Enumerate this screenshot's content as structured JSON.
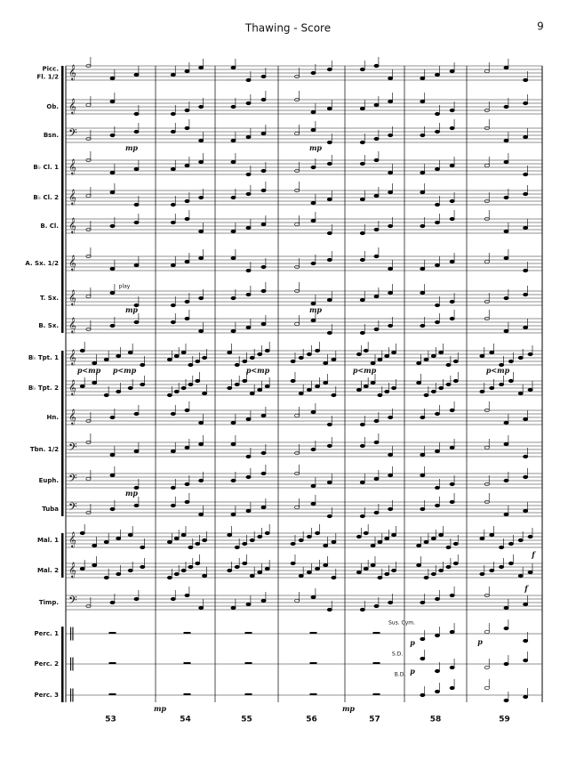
{
  "header": {
    "title": "Thawing - Score",
    "page": "9"
  },
  "staves": [
    {
      "labels": [
        "Picc.",
        "Fl. 1/2"
      ]
    },
    {
      "labels": [
        "Ob."
      ]
    },
    {
      "labels": [
        "Bsn."
      ]
    },
    {
      "labels": [
        "B♭ Cl. 1"
      ]
    },
    {
      "labels": [
        "B♭ Cl. 2"
      ]
    },
    {
      "labels": [
        "B. Cl."
      ]
    },
    {
      "labels": [
        "A. Sx. 1/2"
      ]
    },
    {
      "labels": [
        "T. Sx."
      ]
    },
    {
      "labels": [
        "B. Sx."
      ]
    },
    {
      "labels": [
        "B♭ Tpt. 1"
      ]
    },
    {
      "labels": [
        "B♭ Tpt. 2"
      ]
    },
    {
      "labels": [
        "Hn."
      ]
    },
    {
      "labels": [
        "Tbn. 1/2"
      ]
    },
    {
      "labels": [
        "Euph."
      ]
    },
    {
      "labels": [
        "Tuba"
      ]
    },
    {
      "labels": [
        "Mal. 1"
      ]
    },
    {
      "labels": [
        "Mal. 2"
      ]
    },
    {
      "labels": [
        "Timp."
      ]
    },
    {
      "labels": [
        "Perc. 1"
      ]
    },
    {
      "labels": [
        "Perc. 2"
      ]
    },
    {
      "labels": [
        "Perc. 3"
      ]
    }
  ],
  "measures": [
    "53",
    "54",
    "55",
    "56",
    "57",
    "58",
    "59"
  ],
  "annotations": [
    "play",
    "mp",
    "mp",
    "mp",
    "mp",
    "mp",
    "p<mp",
    "p<mp",
    "p<mp",
    "p<mp",
    "p<mp",
    "Sus. Cym.",
    "p",
    "S.D.",
    "p",
    "B.D.",
    "p",
    "mp",
    "mp",
    "f",
    "f"
  ]
}
